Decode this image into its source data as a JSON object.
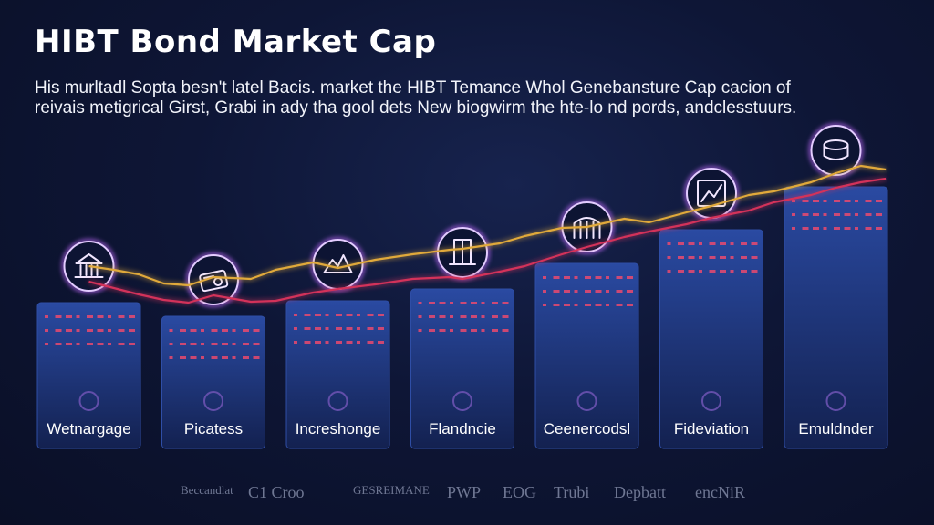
{
  "title": "HIBT Bond Market Cap",
  "intro": "His murltadl Sopta besn't latel Bacis. market the HIBT Temance Whol Genebansture Cap cacion of reivais metigrical Girst, Grabi in ady tha gool dets New biogwirm the hte-lo nd pords, andclesstuurs.",
  "colors": {
    "bar_top": "#29469a",
    "bar_bottom": "#142252",
    "icon_glow": "#c26bff",
    "line_primary": "#e0a93a",
    "line_secondary": "#d3335a",
    "text_rows": "#ff4a6a"
  },
  "chart_data": {
    "type": "bar",
    "categories": [
      "Wetnargage",
      "Picatess",
      "Increshonge",
      "Flandncie",
      "Ceenercodsl",
      "Fideviation",
      "Emuldnder"
    ],
    "values": [
      160,
      145,
      162,
      175,
      203,
      240,
      287
    ],
    "icons": [
      "bank-icon",
      "bond-certificate-icon",
      "mountain-icon",
      "building-icon",
      "stadium-icon",
      "chart-up-icon",
      "coin-stack-icon"
    ],
    "series": [
      {
        "name": "",
        "type": "line",
        "points": [
          [
            0.0,
            200
          ],
          [
            0.2,
            196
          ],
          [
            0.4,
            191
          ],
          [
            0.6,
            181
          ],
          [
            0.8,
            179
          ],
          [
            1.0,
            188
          ],
          [
            1.3,
            186
          ],
          [
            1.5,
            196
          ],
          [
            1.8,
            204
          ],
          [
            2.0,
            198
          ],
          [
            2.3,
            207
          ],
          [
            2.6,
            213
          ],
          [
            2.9,
            218
          ],
          [
            3.0,
            219
          ],
          [
            3.3,
            225
          ],
          [
            3.5,
            233
          ],
          [
            3.8,
            242
          ],
          [
            4.0,
            243
          ],
          [
            4.3,
            252
          ],
          [
            4.5,
            248
          ],
          [
            4.8,
            259
          ],
          [
            5.0,
            266
          ],
          [
            5.3,
            278
          ],
          [
            5.5,
            282
          ],
          [
            5.8,
            292
          ],
          [
            6.0,
            302
          ],
          [
            6.2,
            310
          ],
          [
            6.4,
            306
          ]
        ]
      },
      {
        "name": "",
        "type": "line",
        "points": [
          [
            0.0,
            183
          ],
          [
            0.2,
            176
          ],
          [
            0.4,
            169
          ],
          [
            0.6,
            163
          ],
          [
            0.8,
            160
          ],
          [
            1.0,
            168
          ],
          [
            1.3,
            161
          ],
          [
            1.5,
            162
          ],
          [
            1.8,
            171
          ],
          [
            2.0,
            175
          ],
          [
            2.3,
            180
          ],
          [
            2.6,
            186
          ],
          [
            2.9,
            188
          ],
          [
            3.0,
            186
          ],
          [
            3.3,
            194
          ],
          [
            3.5,
            200
          ],
          [
            3.8,
            213
          ],
          [
            4.0,
            221
          ],
          [
            4.3,
            232
          ],
          [
            4.5,
            238
          ],
          [
            4.8,
            246
          ],
          [
            5.0,
            253
          ],
          [
            5.3,
            261
          ],
          [
            5.5,
            270
          ],
          [
            5.8,
            278
          ],
          [
            6.0,
            286
          ],
          [
            6.2,
            292
          ],
          [
            6.4,
            296
          ]
        ]
      }
    ],
    "ylim": [
      0,
      320
    ],
    "grid": false,
    "legend": "none"
  },
  "brands": [
    "Beccandlat",
    "C1 Croo",
    "GESREIMANE",
    "PWP",
    "EOG",
    "Trubi",
    "Depbatt",
    "encNiR"
  ]
}
